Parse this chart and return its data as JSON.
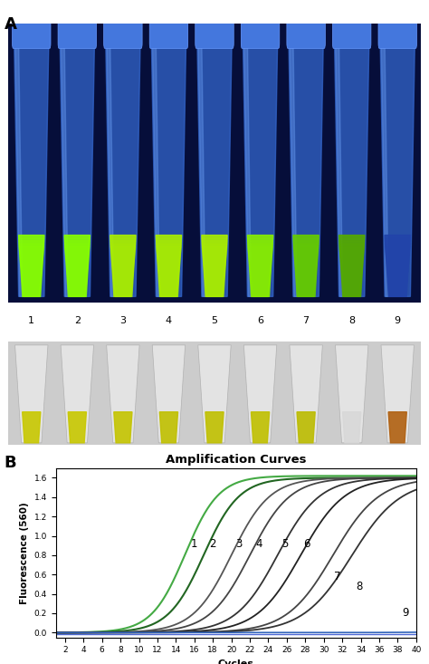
{
  "fig_width": 4.74,
  "fig_height": 7.33,
  "panel_A_label": "A",
  "panel_B_label": "B",
  "chart_title": "Amplification Curves",
  "xlabel": "Cycles",
  "ylabel": "Fluorescence (560)",
  "xlim": [
    1,
    40
  ],
  "ylim": [
    -0.05,
    1.7
  ],
  "xticks": [
    2,
    4,
    6,
    8,
    10,
    12,
    14,
    16,
    18,
    20,
    22,
    24,
    26,
    28,
    30,
    32,
    34,
    36,
    38,
    40
  ],
  "yticks": [
    0.0,
    0.2,
    0.4,
    0.6,
    0.8,
    1.0,
    1.2,
    1.4,
    1.6
  ],
  "background_color": "#e8ddd0",
  "plot_bg_color": "#ffffff",
  "curve_labels": [
    "1",
    "2",
    "3",
    "4",
    "5",
    "6",
    "7",
    "8",
    "9"
  ],
  "curve_midpoints": [
    15.0,
    17.0,
    20.0,
    22.0,
    25.0,
    27.5,
    31.0,
    33.0,
    50.0
  ],
  "curve_max": [
    1.62,
    1.6,
    1.6,
    1.6,
    1.6,
    1.6,
    1.6,
    1.58,
    0.08
  ],
  "curve_steepness": [
    0.55,
    0.52,
    0.48,
    0.46,
    0.44,
    0.42,
    0.4,
    0.38,
    0.3
  ],
  "curve_colors": [
    "#44aa44",
    "#226622",
    "#555555",
    "#444444",
    "#333333",
    "#222222",
    "#444444",
    "#333333",
    "#3366bb"
  ],
  "curve_linewidths": [
    1.5,
    1.5,
    1.3,
    1.3,
    1.3,
    1.3,
    1.3,
    1.3,
    1.2
  ],
  "label_x_positions": [
    16.0,
    18.0,
    20.8,
    23.0,
    25.8,
    28.2,
    31.5,
    33.8,
    38.8
  ],
  "label_y_positions": [
    0.92,
    0.92,
    0.92,
    0.92,
    0.92,
    0.92,
    0.58,
    0.48,
    0.2
  ],
  "tube_numbers": [
    "1",
    "2",
    "3",
    "4",
    "5",
    "6",
    "7",
    "8",
    "9"
  ],
  "uv_bg_color": "#060e3a",
  "uv_tube_colors": [
    "#2244aa",
    "#2244aa",
    "#2244aa",
    "#2244aa",
    "#2244aa",
    "#2244aa",
    "#2244aa",
    "#2244aa",
    "#2244aa"
  ],
  "uv_green_colors": [
    "#88ff00",
    "#88ff00",
    "#aaee00",
    "#aaee00",
    "#aaee00",
    "#88ee00",
    "#66cc00",
    "#55aa00",
    "#2244aa"
  ],
  "vis_bg_color": "#c0c0c0",
  "vis_liq_colors": [
    "#c8c800",
    "#c8c800",
    "#c4c400",
    "#c0c000",
    "#c0c000",
    "#c0c000",
    "#bcbc00",
    "#d8d8d8",
    "#b06010"
  ],
  "baseline_color": "#2244cc",
  "baseline_y": -0.02
}
